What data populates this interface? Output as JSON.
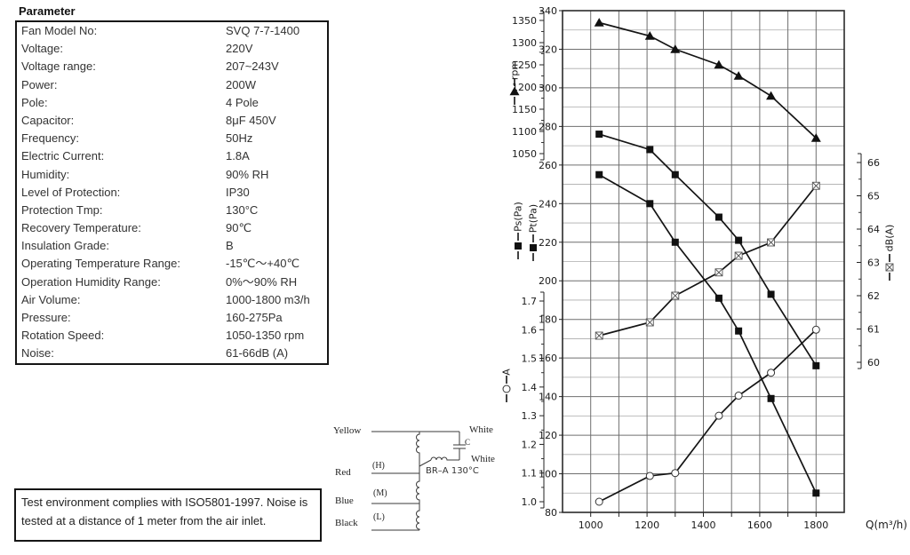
{
  "parameters": {
    "title": "Parameter",
    "rows": [
      {
        "label": "Fan Model No:",
        "value": "SVQ 7-7-1400"
      },
      {
        "label": "Voltage:",
        "value": "220V"
      },
      {
        "label": "Voltage range:",
        "value": "207~243V"
      },
      {
        "label": "Power:",
        "value": "200W"
      },
      {
        "label": "Pole:",
        "value": "4 Pole"
      },
      {
        "label": "Capacitor:",
        "value": "8μF 450V"
      },
      {
        "label": "Frequency:",
        "value": "50Hz"
      },
      {
        "label": "Electric Current:",
        "value": "1.8A"
      },
      {
        "label": "Humidity:",
        "value": "90% RH"
      },
      {
        "label": "Level of Protection:",
        "value": "IP30"
      },
      {
        "label": "Protection Tmp:",
        "value": "130°C"
      },
      {
        "label": "Recovery Temperature:",
        "value": "90℃"
      },
      {
        "label": "Insulation Grade:",
        "value": "B"
      },
      {
        "label": "Operating Temperature Range:",
        "value": "-15℃～+40℃"
      },
      {
        "label": "Operation Humidity Range:",
        "value": "0%～90% RH"
      },
      {
        "label": "Air Volume:",
        "value": "1000-1800 m3/h"
      },
      {
        "label": "Pressure:",
        "value": "160-275Pa"
      },
      {
        "label": "Rotation Speed:",
        "value": "1050-1350 rpm"
      },
      {
        "label": "Noise:",
        "value": "61-66dB (A)"
      }
    ]
  },
  "note": {
    "text": "Test environment complies with ISO5801-1997. Noise is tested at a distance of 1 meter from the air inlet."
  },
  "wiring": {
    "labels": {
      "yellow": "Yellow",
      "red": "Red",
      "blue": "Blue",
      "black": "Black",
      "white_top": "White",
      "white_bottom": "White",
      "capacitor": "C",
      "thermal": "BR–A  130°C",
      "high": "(H)",
      "medium": "(M)",
      "low": "(L)"
    }
  },
  "chart_data": {
    "type": "line",
    "x_label": "Q(m³/h)",
    "x_range": [
      900,
      1900
    ],
    "x_gridline_step": 100,
    "x_ticks": [
      1000,
      1200,
      1400,
      1600,
      1800
    ],
    "x": [
      1030,
      1210,
      1300,
      1455,
      1525,
      1640,
      1800
    ],
    "axes": {
      "pa": {
        "labels": [
          "Ps(Pa)",
          "Pt(Pa)"
        ],
        "range": [
          80,
          340
        ],
        "tick_step": 20,
        "gridline_step": 10
      },
      "rpm": {
        "label": "rpm",
        "range": [
          1050,
          1350
        ],
        "tick_step": 50
      },
      "amp": {
        "label": "A",
        "range": [
          1.0,
          1.7
        ],
        "tick_step": 0.1
      },
      "db": {
        "label": "dB(A)",
        "range": [
          60,
          66
        ],
        "tick_step": 1
      }
    },
    "series": [
      {
        "name": "rpm",
        "axis": "rpm",
        "marker": "triangle",
        "values": [
          1345,
          1315,
          1285,
          1250,
          1225,
          1180,
          1085
        ]
      },
      {
        "name": "Pt(Pa)",
        "axis": "pa",
        "marker": "square",
        "values": [
          276,
          268,
          255,
          233,
          221,
          193,
          156
        ]
      },
      {
        "name": "Ps(Pa)",
        "axis": "pa",
        "marker": "square",
        "values": [
          255,
          240,
          220,
          191,
          174,
          139,
          90
        ]
      },
      {
        "name": "dB(A)",
        "axis": "db",
        "marker": "crossed-square",
        "values": [
          60.8,
          61.2,
          62.0,
          62.7,
          63.2,
          63.6,
          65.3
        ]
      },
      {
        "name": "A",
        "axis": "amp",
        "marker": "circle",
        "values": [
          1.0,
          1.09,
          1.1,
          1.3,
          1.37,
          1.45,
          1.6
        ]
      }
    ],
    "grid": true,
    "legend_position": "vertical labels left of plot (rpm, Ps, Pt, A) and right of plot (dB)"
  }
}
